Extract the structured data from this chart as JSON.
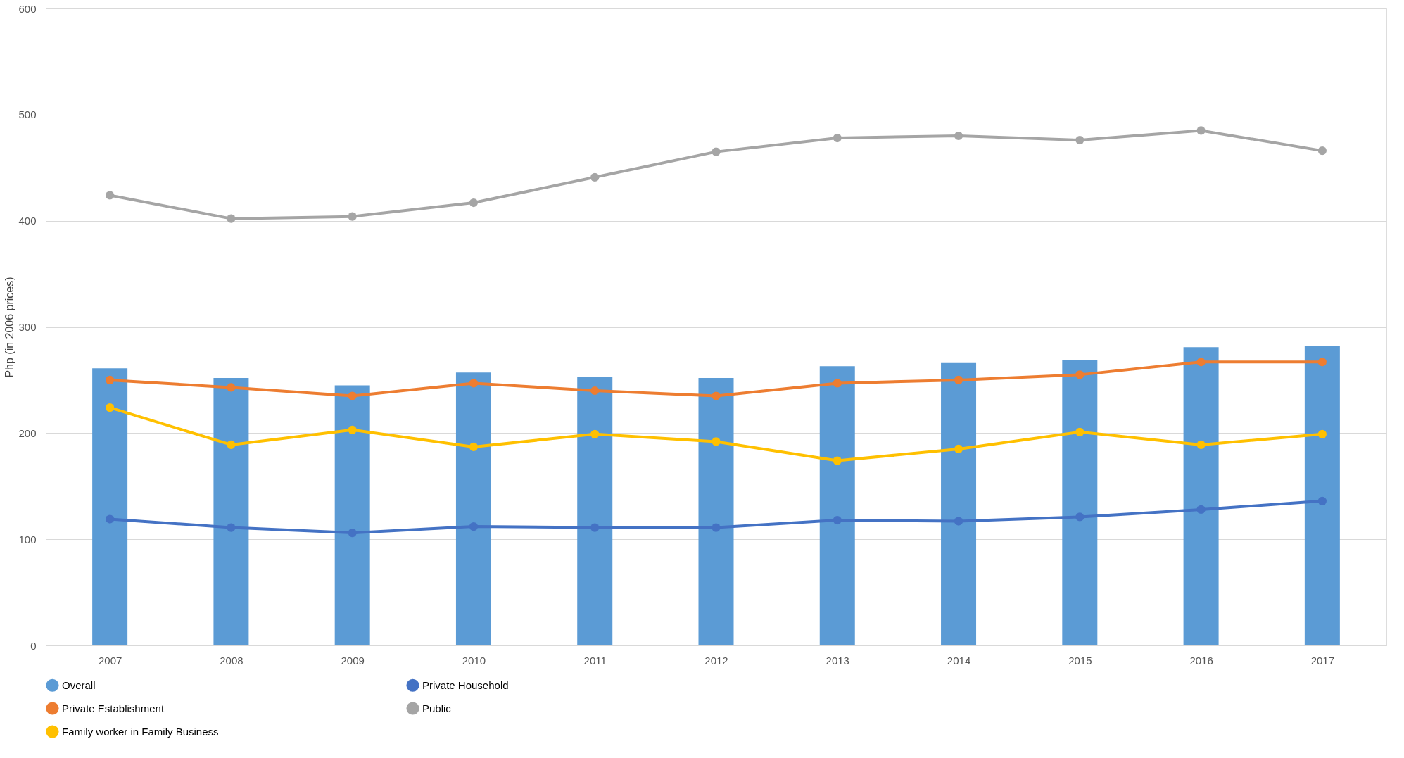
{
  "chart_data": {
    "type": "bar",
    "ylabel": "Php (in 2006 prices)",
    "categories": [
      "2007",
      "2008",
      "2009",
      "2010",
      "2011",
      "2012",
      "2013",
      "2014",
      "2015",
      "2016",
      "2017"
    ],
    "series": [
      {
        "name": "Overall",
        "color": "#5b9bd5",
        "values": [
          261,
          252,
          245,
          257,
          253,
          252,
          263,
          266,
          269,
          281,
          282
        ]
      },
      {
        "name": "Private Household",
        "type": "line",
        "color": "#4472c4",
        "values": [
          119,
          111,
          106,
          112,
          111,
          111,
          118,
          117,
          121,
          128,
          136
        ]
      },
      {
        "name": "Private Establishment",
        "type": "line",
        "color": "#ed7d31",
        "values": [
          250,
          243,
          235,
          247,
          240,
          235,
          247,
          250,
          255,
          267,
          267
        ]
      },
      {
        "name": "Public",
        "type": "line",
        "color": "#a5a5a5",
        "values": [
          424,
          402,
          404,
          417,
          441,
          465,
          478,
          480,
          476,
          485,
          466
        ]
      },
      {
        "name": "Family worker in Family Business",
        "type": "line",
        "color": "#ffc000",
        "values": [
          224,
          189,
          203,
          187,
          199,
          192,
          174,
          185,
          201,
          189,
          199
        ]
      }
    ],
    "ylim": [
      0,
      600
    ],
    "yticks": [
      0,
      100,
      200,
      300,
      400,
      500,
      600
    ],
    "grid": "y",
    "legend": "bottom",
    "marker": "circle",
    "line_style": "solid"
  }
}
